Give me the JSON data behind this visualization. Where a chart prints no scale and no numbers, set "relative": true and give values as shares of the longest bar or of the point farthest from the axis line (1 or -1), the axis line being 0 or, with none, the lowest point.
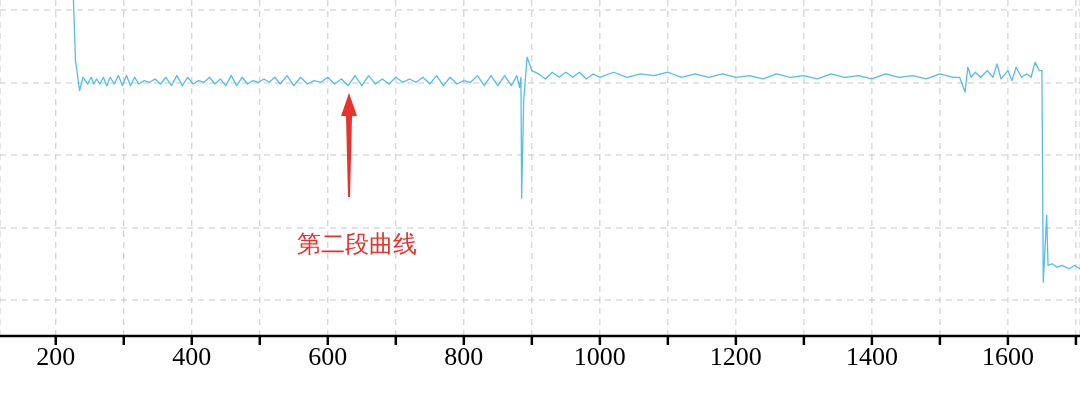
{
  "chart_data": {
    "type": "line",
    "relative": true,
    "color": "#56bde8",
    "x": [
      226,
      229,
      235,
      240,
      247,
      252,
      256,
      260,
      265,
      270,
      275,
      280,
      286,
      292,
      298,
      304,
      310,
      316,
      322,
      330,
      338,
      346,
      354,
      362,
      370,
      378,
      386,
      394,
      402,
      410,
      418,
      426,
      434,
      442,
      450,
      458,
      466,
      474,
      482,
      490,
      498,
      506,
      514,
      522,
      530,
      540,
      550,
      560,
      570,
      580,
      590,
      600,
      610,
      620,
      630,
      640,
      650,
      660,
      670,
      680,
      690,
      700,
      710,
      720,
      730,
      740,
      750,
      760,
      770,
      780,
      790,
      800,
      810,
      820,
      830,
      840,
      850,
      860,
      870,
      878,
      882,
      884,
      885,
      888,
      893,
      900,
      910,
      920,
      930,
      940,
      950,
      960,
      970,
      980,
      990,
      1000,
      1020,
      1040,
      1060,
      1080,
      1100,
      1120,
      1140,
      1160,
      1180,
      1200,
      1220,
      1240,
      1260,
      1280,
      1300,
      1320,
      1340,
      1360,
      1380,
      1400,
      1420,
      1440,
      1460,
      1480,
      1500,
      1520,
      1529,
      1537,
      1541,
      1546,
      1552,
      1560,
      1570,
      1578,
      1584,
      1590,
      1600,
      1606,
      1612,
      1620,
      1628,
      1634,
      1640,
      1646,
      1650,
      1652,
      1653,
      1657,
      1659,
      1665,
      1672,
      1680,
      1690,
      1698,
      1706
    ],
    "values": [
      1.0,
      0.82,
      0.73,
      0.77,
      0.75,
      0.77,
      0.75,
      0.765,
      0.75,
      0.77,
      0.745,
      0.77,
      0.75,
      0.775,
      0.745,
      0.775,
      0.745,
      0.77,
      0.75,
      0.76,
      0.755,
      0.765,
      0.75,
      0.77,
      0.745,
      0.775,
      0.745,
      0.77,
      0.75,
      0.76,
      0.755,
      0.77,
      0.75,
      0.765,
      0.745,
      0.775,
      0.745,
      0.77,
      0.75,
      0.76,
      0.755,
      0.765,
      0.755,
      0.77,
      0.75,
      0.775,
      0.745,
      0.77,
      0.75,
      0.76,
      0.755,
      0.77,
      0.75,
      0.765,
      0.745,
      0.775,
      0.745,
      0.775,
      0.75,
      0.765,
      0.75,
      0.77,
      0.755,
      0.765,
      0.755,
      0.77,
      0.75,
      0.775,
      0.745,
      0.77,
      0.75,
      0.76,
      0.755,
      0.775,
      0.745,
      0.775,
      0.745,
      0.775,
      0.745,
      0.775,
      0.74,
      0.77,
      0.41,
      0.7,
      0.83,
      0.79,
      0.78,
      0.765,
      0.785,
      0.77,
      0.785,
      0.77,
      0.785,
      0.765,
      0.78,
      0.77,
      0.785,
      0.77,
      0.78,
      0.775,
      0.785,
      0.77,
      0.78,
      0.77,
      0.78,
      0.77,
      0.775,
      0.765,
      0.78,
      0.77,
      0.775,
      0.765,
      0.78,
      0.77,
      0.775,
      0.765,
      0.78,
      0.77,
      0.775,
      0.765,
      0.78,
      0.77,
      0.77,
      0.726,
      0.8,
      0.77,
      0.785,
      0.77,
      0.79,
      0.77,
      0.81,
      0.765,
      0.79,
      0.76,
      0.8,
      0.77,
      0.78,
      0.77,
      0.815,
      0.79,
      0.79,
      0.16,
      0.2,
      0.36,
      0.21,
      0.215,
      0.205,
      0.21,
      0.2,
      0.21,
      0.2
    ],
    "xlim": [
      118,
      1706
    ],
    "xticks": [
      200,
      {
        "value": 300,
        "label": null
      },
      400,
      {
        "value": 500,
        "label": null
      },
      600,
      {
        "value": 700,
        "label": null
      },
      800,
      {
        "value": 900,
        "label": null
      },
      1000,
      {
        "value": 1100,
        "label": null
      },
      1200,
      {
        "value": 1300,
        "label": null
      },
      1400,
      {
        "value": 1500,
        "label": null
      },
      1600,
      {
        "value": 1700,
        "label": null
      }
    ],
    "grid": true,
    "marker": "none",
    "line_style": "solid",
    "annotations": [
      "第二段曲线"
    ]
  }
}
